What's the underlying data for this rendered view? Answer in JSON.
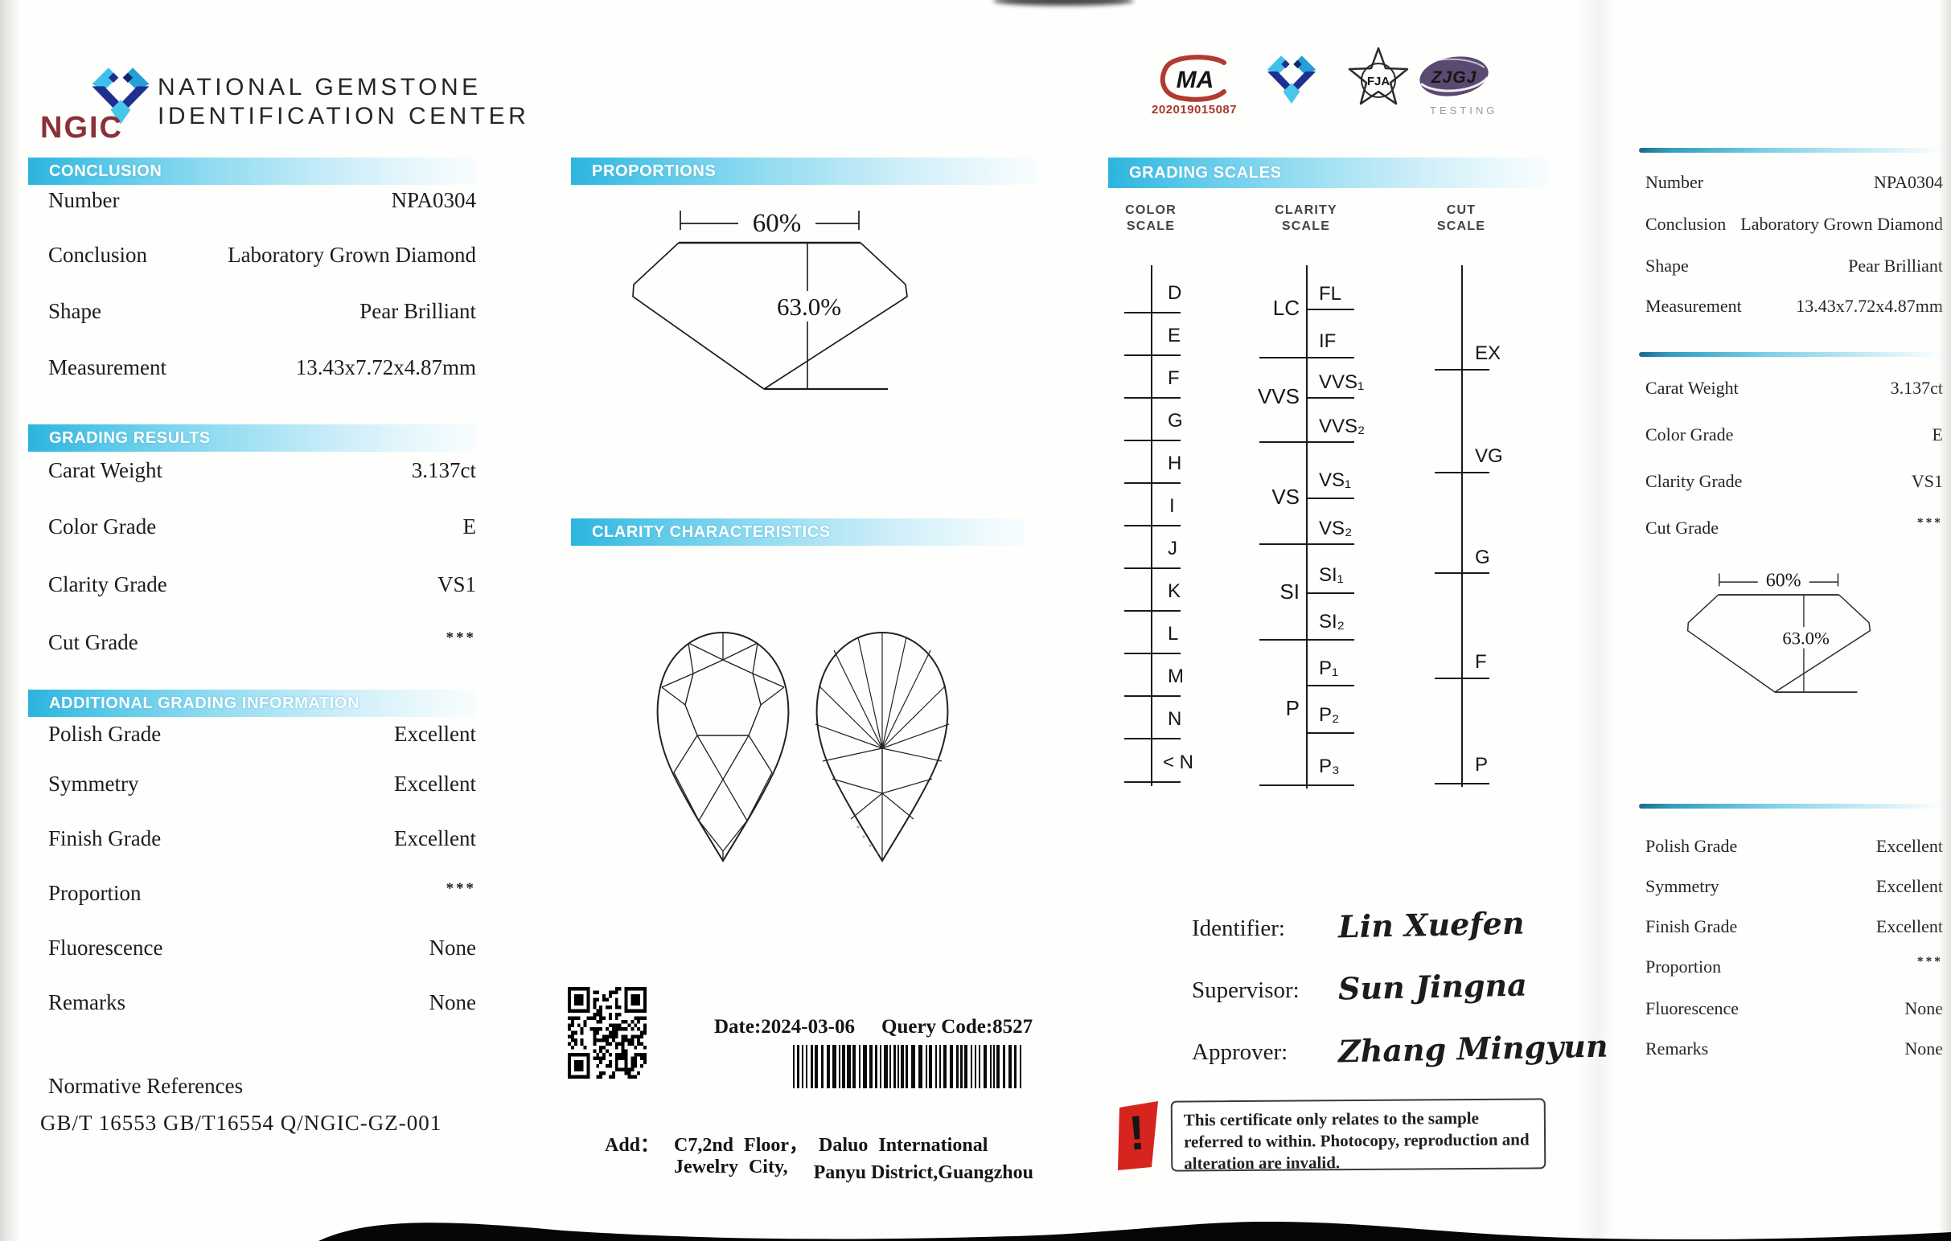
{
  "brand": {
    "logo_text": "NGIC",
    "name_line1": "NATIONAL GEMSTONE",
    "name_line2": "IDENTIFICATION CENTER"
  },
  "badges": {
    "cma": {
      "text": "MA",
      "number": "202019015087"
    },
    "fja": {
      "text": "FJA"
    },
    "zjgj": {
      "text": "ZJGJ",
      "subtext": "TESTING"
    }
  },
  "front": {
    "conclusion": {
      "title": "CONCLUSION",
      "rows": [
        {
          "label": "Number",
          "value": "NPA0304"
        },
        {
          "label": "Conclusion",
          "value": "Laboratory Grown Diamond"
        },
        {
          "label": "Shape",
          "value": "Pear Brilliant"
        },
        {
          "label": "Measurement",
          "value": "13.43x7.72x4.87mm"
        }
      ]
    },
    "grading_results": {
      "title": "GRADING RESULTS",
      "rows": [
        {
          "label": "Carat Weight",
          "value": "3.137ct"
        },
        {
          "label": "Color Grade",
          "value": "E"
        },
        {
          "label": "Clarity Grade",
          "value": "VS1"
        },
        {
          "label": "Cut Grade",
          "value": "***"
        }
      ]
    },
    "additional": {
      "title": "ADDITIONAL GRADING INFORMATION",
      "rows": [
        {
          "label": "Polish Grade",
          "value": "Excellent"
        },
        {
          "label": "Symmetry",
          "value": "Excellent"
        },
        {
          "label": "Finish Grade",
          "value": "Excellent"
        },
        {
          "label": "Proportion",
          "value": "***"
        },
        {
          "label": "Fluorescence",
          "value": "None"
        },
        {
          "label": "Remarks",
          "value": "None"
        }
      ]
    },
    "normative": {
      "label": "Normative References",
      "refs": "GB/T 16553  GB/T16554  Q/NGIC-GZ-001"
    }
  },
  "proportions": {
    "title": "PROPORTIONS",
    "table_pct": "60%",
    "depth_pct": "63.0%"
  },
  "clarity_chars": {
    "title": "CLARITY CHARACTERISTICS"
  },
  "issue": {
    "date": "Date:2024-03-06",
    "query": "Query Code:8527",
    "add_label": "Add：",
    "address_line1": "C7,2nd Floor， Daluo International Jewelry City,",
    "address_line2": "Panyu District,Guangzhou"
  },
  "scales": {
    "title": "GRADING SCALES",
    "color": {
      "header_line1": "COLOR",
      "header_line2": "SCALE",
      "grades": [
        "D",
        "E",
        "F",
        "G",
        "H",
        "I",
        "J",
        "K",
        "L",
        "M",
        "N",
        "< N"
      ]
    },
    "clarity": {
      "header_line1": "CLARITY",
      "header_line2": "SCALE",
      "groups": [
        "LC",
        "VVS",
        "VS",
        "SI",
        "P"
      ],
      "grades": [
        "FL",
        "IF",
        "VVS₁",
        "VVS₂",
        "VS₁",
        "VS₂",
        "SI₁",
        "SI₂",
        "P₁",
        "P₂",
        "P₃"
      ]
    },
    "cut": {
      "header_line1": "CUT",
      "header_line2": "SCALE",
      "grades": [
        "EX",
        "VG",
        "G",
        "F",
        "P"
      ]
    }
  },
  "signatures": [
    {
      "role": "Identifier:",
      "name": "Lin Xuefen"
    },
    {
      "role": "Supervisor:",
      "name": "Sun Jingna"
    },
    {
      "role": "Approver:",
      "name": "Zhang Mingyun"
    }
  ],
  "notice": {
    "text": "This certificate only relates to the sample referred to within. Photocopy, reproduction and alteration are invalid."
  },
  "back": {
    "info_rows": [
      {
        "label": "Number",
        "value": "NPA0304"
      },
      {
        "label": "Conclusion",
        "value": "Laboratory Grown Diamond"
      },
      {
        "label": "Shape",
        "value": "Pear Brilliant"
      },
      {
        "label": "Measurement",
        "value": "13.43x7.72x4.87mm"
      }
    ],
    "grade_rows": [
      {
        "label": "Carat Weight",
        "value": "3.137ct"
      },
      {
        "label": "Color Grade",
        "value": "E"
      },
      {
        "label": "Clarity Grade",
        "value": "VS1"
      },
      {
        "label": "Cut Grade",
        "value": "***"
      }
    ],
    "additional_rows": [
      {
        "label": "Polish Grade",
        "value": "Excellent"
      },
      {
        "label": "Symmetry",
        "value": "Excellent"
      },
      {
        "label": "Finish Grade",
        "value": "Excellent"
      },
      {
        "label": "Proportion",
        "value": "***"
      },
      {
        "label": "Fluorescence",
        "value": "None"
      },
      {
        "label": "Remarks",
        "value": "None"
      }
    ],
    "proportions": {
      "table_pct": "60%",
      "depth_pct": "63.0%"
    }
  },
  "colors": {
    "accent_cyan": "#3bbfe3",
    "brand_red": "#8a3038",
    "cma_red": "#b23a31",
    "zjgj_purple": "#5a4970",
    "warning_red": "#d6241e"
  }
}
